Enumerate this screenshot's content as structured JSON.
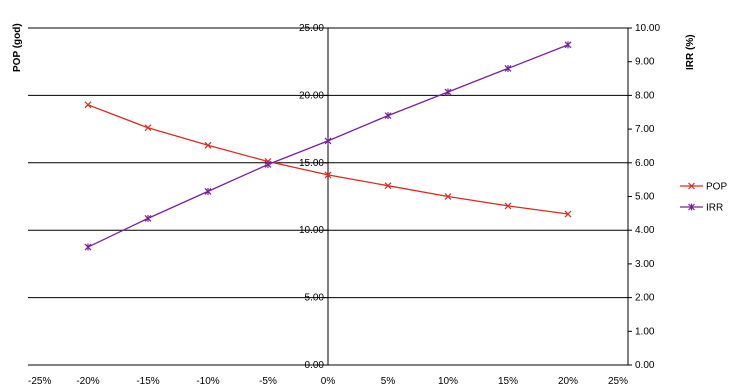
{
  "chart_data": {
    "type": "line",
    "x": [
      "-20%",
      "-15%",
      "-10%",
      "-5%",
      "0%",
      "5%",
      "10%",
      "15%",
      "20%"
    ],
    "x_values": [
      -20,
      -15,
      -10,
      -5,
      0,
      5,
      10,
      15,
      20
    ],
    "xlim": [
      -25,
      25
    ],
    "x_ticks": [
      "-25%",
      "-20%",
      "-15%",
      "-10%",
      "-5%",
      "0%",
      "5%",
      "10%",
      "15%",
      "20%",
      "25%"
    ],
    "ylabel": "POP (god)",
    "ylim": [
      0,
      25
    ],
    "y_ticks": [
      "0.00",
      "5.00",
      "10.00",
      "15.00",
      "20.00",
      "25.00"
    ],
    "y2label": "IRR (%)",
    "y2lim": [
      0,
      10
    ],
    "y2_ticks": [
      "0.00",
      "1.00",
      "2.00",
      "3.00",
      "4.00",
      "5.00",
      "6.00",
      "7.00",
      "8.00",
      "9.00",
      "10.00"
    ],
    "grid": "horizontal",
    "legend": "right",
    "series": [
      {
        "name": "POP",
        "axis": "left",
        "color": "#dd2a1f",
        "marker": "x",
        "values": [
          19.3,
          17.6,
          16.3,
          15.1,
          14.1,
          13.3,
          12.5,
          11.8,
          11.2
        ]
      },
      {
        "name": "IRR",
        "axis": "right",
        "color": "#7a1fa2",
        "marker": "*",
        "values": [
          3.5,
          4.35,
          5.15,
          5.95,
          6.65,
          7.4,
          8.1,
          8.8,
          9.5
        ]
      }
    ]
  }
}
